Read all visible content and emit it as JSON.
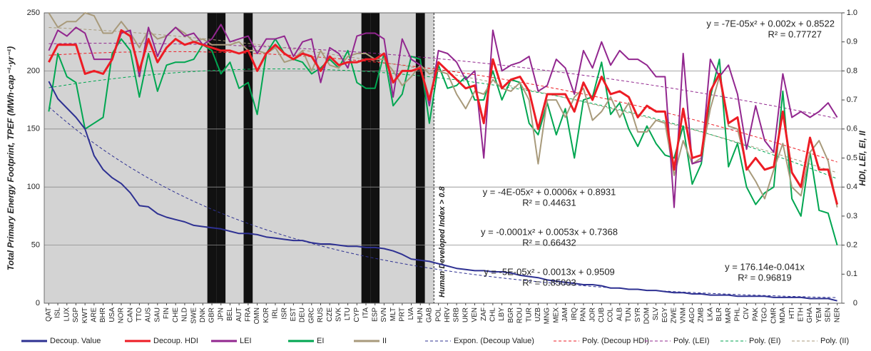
{
  "chart_data": {
    "type": "line",
    "ylabel": "Total Primary Energy Footprint, TPEF (MWh·cap⁻¹·yr⁻¹)",
    "y2label": "HDI, LEI, EI, II",
    "annotation": "Human Developed Index > 0.8",
    "shaded_through": "GAB",
    "highlighted": [
      "GBR",
      "JPN",
      "FRA",
      "ITA",
      "ESP",
      "HUN"
    ],
    "categories": [
      "QAT",
      "ISL",
      "LUX",
      "SGP",
      "KWT",
      "ARE",
      "BHR",
      "USA",
      "NOR",
      "CAN",
      "TTO",
      "AUS",
      "SAU",
      "FIN",
      "CHE",
      "NLD",
      "SWE",
      "DNK",
      "GBR",
      "JPN",
      "BEL",
      "AUT",
      "FRA",
      "OMN",
      "KOR",
      "IRL",
      "ISR",
      "EST",
      "DEU",
      "GRC",
      "RUS",
      "CZE",
      "SVK",
      "LTU",
      "CYP",
      "ITA",
      "ESP",
      "SVN",
      "MLT",
      "PRT",
      "LVA",
      "HUN",
      "GAB",
      "POL",
      "HRV",
      "SRB",
      "UKR",
      "VEN",
      "ZAF",
      "CHL",
      "LBY",
      "BGR",
      "ROU",
      "TUR",
      "UZB",
      "MNG",
      "MEX",
      "JAM",
      "IRQ",
      "PAN",
      "JOR",
      "CUB",
      "COL",
      "ALB",
      "TUN",
      "SYR",
      "DOM",
      "SLV",
      "EGY",
      "ZWE",
      "VNM",
      "AGO",
      "ZMB",
      "LKA",
      "BLR",
      "MAR",
      "PHL",
      "CIV",
      "PAK",
      "TGO",
      "CMR",
      "MDA",
      "HTI",
      "ETH",
      "GHA",
      "YEM",
      "SEN",
      "NER"
    ],
    "ylim": [
      0,
      250
    ],
    "yticks": [
      0,
      50,
      100,
      150,
      200,
      250
    ],
    "y2lim": [
      0,
      1
    ],
    "y2ticks": [
      0,
      0.1,
      0.2,
      0.3,
      0.4,
      0.5,
      0.6,
      0.7,
      0.8,
      0.9,
      {
        "value": 1,
        "label": "1.0"
      }
    ],
    "grid": true,
    "series": [
      {
        "name": "Decoup. Value",
        "color": "#2e3192",
        "axis": "y",
        "values": [
          191,
          176,
          168,
          160,
          150,
          127,
          115,
          108,
          103,
          95,
          84,
          83,
          77,
          74,
          72,
          70,
          67,
          66,
          65,
          64,
          62,
          60,
          60,
          59,
          57,
          56,
          55,
          54,
          54,
          52,
          51,
          51,
          50,
          49,
          49,
          48,
          48,
          47,
          45,
          42,
          38,
          37,
          36,
          34,
          32,
          30,
          29,
          28,
          28,
          27,
          27,
          26,
          24,
          23,
          22,
          20,
          19,
          18,
          17,
          16,
          16,
          15,
          13,
          13,
          12,
          12,
          11,
          11,
          10,
          9,
          9,
          8,
          8,
          7,
          7,
          7,
          6,
          6,
          6,
          6,
          5,
          5,
          5,
          5,
          4,
          4,
          4,
          2
        ]
      },
      {
        "name": "Decoup. HDI",
        "color": "#ed1c24",
        "axis": "y2",
        "values": [
          0.83,
          0.89,
          0.89,
          0.89,
          0.79,
          0.8,
          0.79,
          0.84,
          0.94,
          0.92,
          0.8,
          0.91,
          0.83,
          0.88,
          0.91,
          0.89,
          0.9,
          0.89,
          0.88,
          0.87,
          0.87,
          0.86,
          0.87,
          0.8,
          0.86,
          0.89,
          0.86,
          0.84,
          0.86,
          0.85,
          0.8,
          0.85,
          0.82,
          0.83,
          0.83,
          0.84,
          0.84,
          0.86,
          0.76,
          0.8,
          0.8,
          0.81,
          0.7,
          0.83,
          0.8,
          0.77,
          0.74,
          0.75,
          0.62,
          0.84,
          0.74,
          0.77,
          0.78,
          0.73,
          0.6,
          0.72,
          0.72,
          0.72,
          0.66,
          0.76,
          0.7,
          0.78,
          0.72,
          0.73,
          0.71,
          0.64,
          0.68,
          0.66,
          0.66,
          0.46,
          0.67,
          0.5,
          0.51,
          0.73,
          0.79,
          0.62,
          0.64,
          0.46,
          0.5,
          0.46,
          0.47,
          0.66,
          0.45,
          0.4,
          0.57,
          0.46,
          0.46,
          0.34
        ]
      },
      {
        "name": "LEI",
        "color": "#92278f",
        "axis": "y2",
        "values": [
          0.87,
          0.94,
          0.92,
          0.95,
          0.93,
          0.84,
          0.84,
          0.84,
          0.93,
          0.94,
          0.78,
          0.95,
          0.85,
          0.92,
          0.95,
          0.92,
          0.93,
          0.89,
          0.91,
          0.96,
          0.9,
          0.91,
          0.92,
          0.86,
          0.91,
          0.91,
          0.92,
          0.85,
          0.9,
          0.91,
          0.76,
          0.88,
          0.86,
          0.81,
          0.92,
          0.93,
          0.93,
          0.91,
          0.71,
          0.91,
          0.84,
          0.82,
          0.68,
          0.87,
          0.86,
          0.83,
          0.77,
          0.8,
          0.5,
          0.94,
          0.8,
          0.82,
          0.83,
          0.85,
          0.73,
          0.75,
          0.84,
          0.81,
          0.72,
          0.87,
          0.81,
          0.9,
          0.82,
          0.87,
          0.84,
          0.84,
          0.82,
          0.78,
          0.78,
          0.33,
          0.86,
          0.48,
          0.49,
          0.84,
          0.78,
          0.82,
          0.72,
          0.53,
          0.68,
          0.56,
          0.52,
          0.79,
          0.64,
          0.66,
          0.64,
          0.66,
          0.69,
          0.64
        ]
      },
      {
        "name": "EI",
        "color": "#00a651",
        "axis": "y2",
        "values": [
          0.66,
          0.86,
          0.78,
          0.76,
          0.6,
          0.62,
          0.64,
          0.86,
          0.91,
          0.87,
          0.71,
          0.86,
          0.73,
          0.82,
          0.83,
          0.83,
          0.84,
          0.89,
          0.87,
          0.79,
          0.83,
          0.74,
          0.76,
          0.65,
          0.86,
          0.91,
          0.86,
          0.84,
          0.83,
          0.79,
          0.81,
          0.84,
          0.81,
          0.87,
          0.76,
          0.74,
          0.74,
          0.86,
          0.68,
          0.72,
          0.85,
          0.84,
          0.62,
          0.82,
          0.74,
          0.75,
          0.78,
          0.7,
          0.7,
          0.8,
          0.7,
          0.77,
          0.76,
          0.62,
          0.58,
          0.69,
          0.58,
          0.67,
          0.5,
          0.7,
          0.71,
          0.83,
          0.65,
          0.69,
          0.6,
          0.54,
          0.61,
          0.55,
          0.51,
          0.5,
          0.61,
          0.41,
          0.48,
          0.71,
          0.84,
          0.47,
          0.55,
          0.4,
          0.34,
          0.38,
          0.4,
          0.73,
          0.36,
          0.3,
          0.52,
          0.32,
          0.31,
          0.2
        ]
      },
      {
        "name": "II",
        "color": "#a89a7b",
        "axis": "y2",
        "values": [
          1,
          0.95,
          0.97,
          0.97,
          1,
          0.99,
          0.93,
          0.93,
          0.97,
          0.93,
          0.88,
          0.94,
          0.91,
          0.92,
          0.95,
          0.93,
          0.9,
          0.91,
          0.89,
          0.89,
          0.89,
          0.9,
          0.87,
          0.87,
          0.86,
          0.88,
          0.83,
          0.84,
          0.87,
          0.8,
          0.87,
          0.82,
          0.81,
          0.85,
          0.86,
          0.86,
          0.84,
          0.84,
          0.8,
          0.75,
          0.78,
          0.82,
          0.79,
          0.8,
          0.79,
          0.72,
          0.67,
          0.73,
          0.72,
          0.77,
          0.74,
          0.73,
          0.76,
          0.7,
          0.48,
          0.7,
          0.7,
          0.64,
          0.71,
          0.74,
          0.63,
          0.66,
          0.71,
          0.64,
          0.69,
          0.59,
          0.59,
          0.63,
          0.62,
          0.44,
          0.56,
          0.48,
          0.5,
          0.67,
          0.78,
          0.61,
          0.6,
          0.47,
          0.42,
          0.36,
          0.46,
          0.55,
          0.4,
          0.37,
          0.52,
          0.56,
          0.49,
          0.33
        ]
      }
    ],
    "trendlines": [
      {
        "name": "Expon. (Decoup Value)",
        "color": "#2e3192",
        "axis": "y",
        "kind": "exponential",
        "coefficients": [
          176.14,
          -0.041
        ],
        "equation": "y = 176.14e-0.041x",
        "r_squared": "R² = 0.96819"
      },
      {
        "name": "Poly. (Decoup HDI)",
        "color": "#ed1c24",
        "axis": "y2",
        "kind": "polynomial",
        "coefficients": [
          -7e-05,
          0.002,
          0.8522
        ],
        "equation": "y = -7E-05x² + 0.002x + 0.8522",
        "r_squared": "R² = 0.77727"
      },
      {
        "name": "Poly. (LEI)",
        "color": "#92278f",
        "axis": "y2",
        "kind": "polynomial",
        "coefficients": [
          -4e-05,
          0.0006,
          0.8931
        ],
        "equation": "y = -4E-05x² + 0.0006x + 0.8931",
        "r_squared": "R² = 0.44631"
      },
      {
        "name": "Poly. (EI)",
        "color": "#00a651",
        "axis": "y2",
        "kind": "polynomial",
        "coefficients": [
          -0.0001,
          0.0053,
          0.7368
        ],
        "equation": "y = -0.0001x² + 0.0053x + 0.7368",
        "r_squared": "R² = 0.66432"
      },
      {
        "name": "Poly. (II)",
        "color": "#a89a7b",
        "axis": "y2",
        "kind": "polynomial",
        "coefficients": [
          -5e-05,
          -0.0013,
          0.9509
        ],
        "equation": "y = -5E-05x² - 0.0013x + 0.9509",
        "r_squared": "R² = 0.85003"
      }
    ]
  }
}
